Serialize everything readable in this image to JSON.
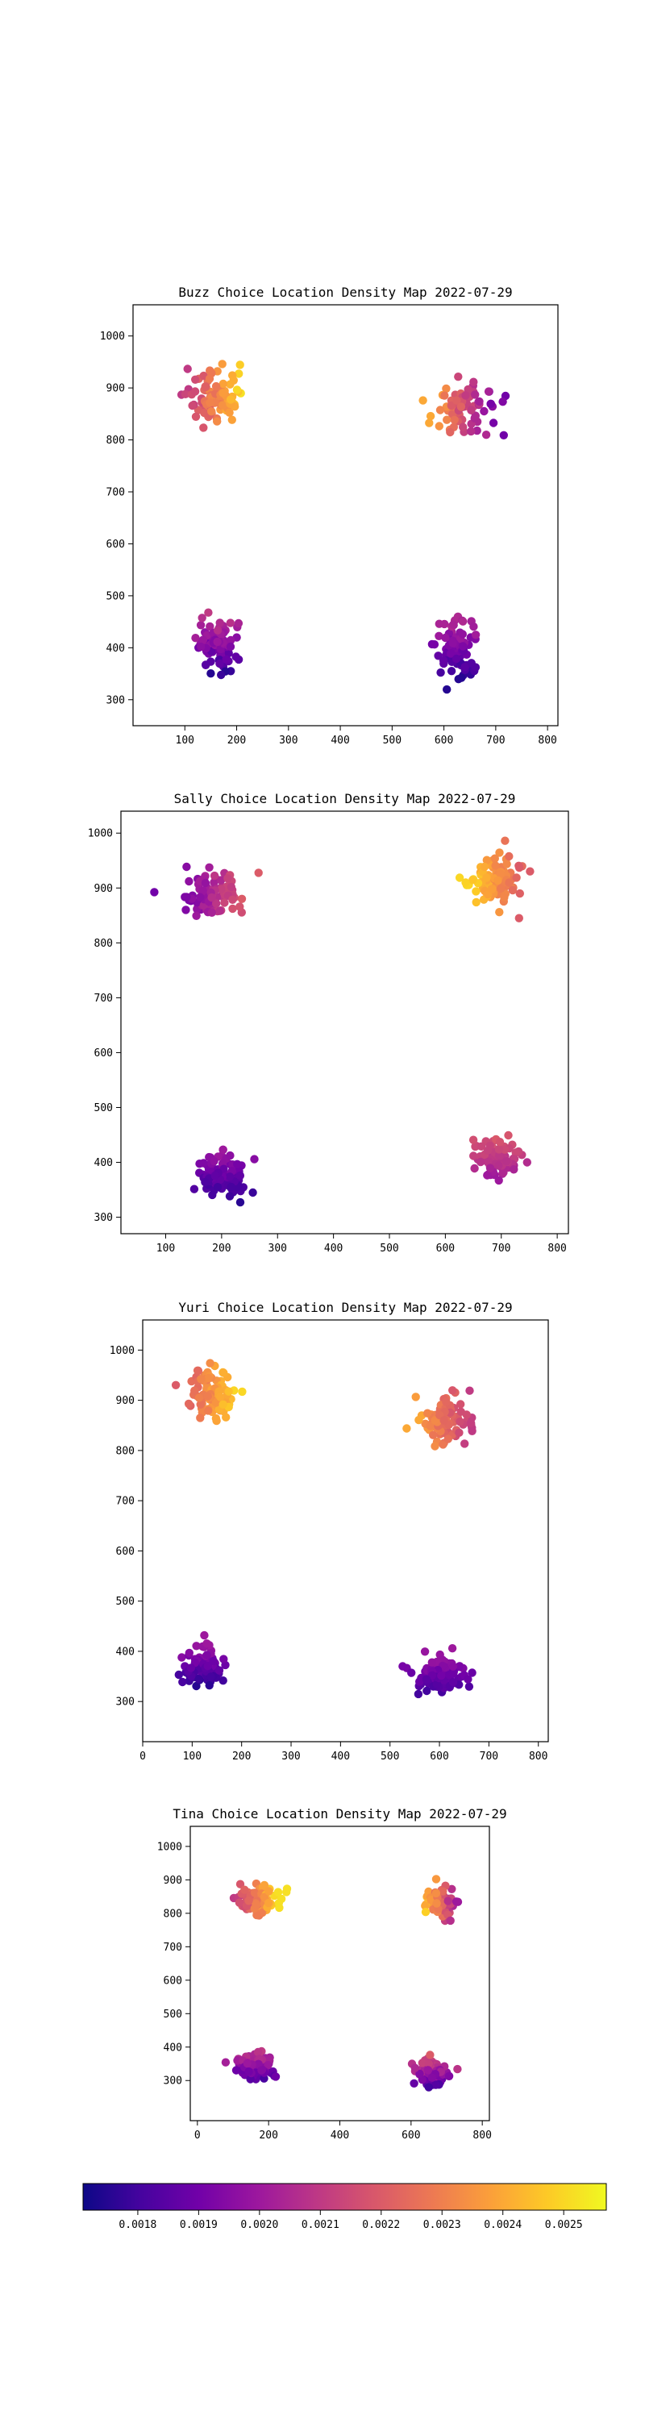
{
  "chart_data": [
    {
      "type": "scatter",
      "title": "Buzz Choice Location Density Map 2022-07-29",
      "xlim": [
        0,
        820
      ],
      "ylim": [
        250,
        1060
      ],
      "xticks": [
        100,
        200,
        300,
        400,
        500,
        600,
        700,
        800
      ],
      "yticks": [
        300,
        400,
        500,
        600,
        700,
        800,
        900,
        1000
      ],
      "clusters": [
        {
          "cx": 160,
          "cy": 885,
          "sx": 48,
          "sy": 45,
          "n": 95,
          "d0": 0.0021,
          "d1": 0.00252,
          "grad": "right"
        },
        {
          "cx": 640,
          "cy": 860,
          "sx": 55,
          "sy": 45,
          "n": 75,
          "d0": 0.0024,
          "d1": 0.0019,
          "grad": "right"
        },
        {
          "cx": 165,
          "cy": 400,
          "sx": 32,
          "sy": 48,
          "n": 85,
          "d0": 0.00175,
          "d1": 0.0021,
          "grad": "up"
        },
        {
          "cx": 625,
          "cy": 395,
          "sx": 30,
          "sy": 45,
          "n": 80,
          "d0": 0.00175,
          "d1": 0.00205,
          "grad": "up"
        }
      ]
    },
    {
      "type": "scatter",
      "title": "Sally Choice Location Density Map 2022-07-29",
      "xlim": [
        20,
        820
      ],
      "ylim": [
        270,
        1040
      ],
      "xticks": [
        100,
        200,
        300,
        400,
        500,
        600,
        700,
        800
      ],
      "yticks": [
        300,
        400,
        500,
        600,
        700,
        800,
        900,
        1000
      ],
      "clusters": [
        {
          "cx": 185,
          "cy": 885,
          "sx": 48,
          "sy": 40,
          "n": 90,
          "d0": 0.0019,
          "d1": 0.0022,
          "grad": "right"
        },
        {
          "cx": 690,
          "cy": 915,
          "sx": 42,
          "sy": 40,
          "n": 95,
          "d0": 0.0025,
          "d1": 0.0022,
          "grad": "right"
        },
        {
          "cx": 200,
          "cy": 375,
          "sx": 40,
          "sy": 38,
          "n": 90,
          "d0": 0.00175,
          "d1": 0.002,
          "grad": "up"
        },
        {
          "cx": 690,
          "cy": 410,
          "sx": 40,
          "sy": 35,
          "n": 80,
          "d0": 0.002,
          "d1": 0.0022,
          "grad": "up"
        }
      ]
    },
    {
      "type": "scatter",
      "title": "Yuri Choice Location Density Map 2022-07-29",
      "xlim": [
        0,
        820
      ],
      "ylim": [
        220,
        1060
      ],
      "xticks": [
        0,
        100,
        200,
        300,
        400,
        500,
        600,
        700,
        800
      ],
      "yticks": [
        300,
        400,
        500,
        600,
        700,
        800,
        900,
        1000
      ],
      "clusters": [
        {
          "cx": 140,
          "cy": 910,
          "sx": 45,
          "sy": 45,
          "n": 100,
          "d0": 0.0022,
          "d1": 0.0025,
          "grad": "right"
        },
        {
          "cx": 610,
          "cy": 860,
          "sx": 45,
          "sy": 40,
          "n": 95,
          "d0": 0.0024,
          "d1": 0.0021,
          "grad": "right"
        },
        {
          "cx": 120,
          "cy": 370,
          "sx": 38,
          "sy": 35,
          "n": 90,
          "d0": 0.00175,
          "d1": 0.002,
          "grad": "up"
        },
        {
          "cx": 600,
          "cy": 355,
          "sx": 50,
          "sy": 35,
          "n": 90,
          "d0": 0.0018,
          "d1": 0.002,
          "grad": "up"
        }
      ]
    },
    {
      "type": "scatter",
      "title": "Tina Choice Location Density Map 2022-07-29",
      "xlim": [
        -20,
        820
      ],
      "ylim": [
        180,
        1060
      ],
      "xticks": [
        0,
        200,
        400,
        600,
        800
      ],
      "yticks": [
        300,
        400,
        500,
        600,
        700,
        800,
        900,
        1000
      ],
      "clusters": [
        {
          "cx": 170,
          "cy": 840,
          "sx": 55,
          "sy": 40,
          "n": 110,
          "d0": 0.0021,
          "d1": 0.00252,
          "grad": "right"
        },
        {
          "cx": 680,
          "cy": 830,
          "sx": 40,
          "sy": 40,
          "n": 90,
          "d0": 0.0025,
          "d1": 0.002,
          "grad": "right"
        },
        {
          "cx": 160,
          "cy": 340,
          "sx": 45,
          "sy": 40,
          "n": 95,
          "d0": 0.0018,
          "d1": 0.0021,
          "grad": "up"
        },
        {
          "cx": 660,
          "cy": 325,
          "sx": 40,
          "sy": 40,
          "n": 95,
          "d0": 0.0018,
          "d1": 0.0022,
          "grad": "up"
        }
      ]
    }
  ],
  "colorbar": {
    "colormap": "plasma",
    "range": [
      0.00171,
      0.00257
    ],
    "ticks": [
      "0.0018",
      "0.0019",
      "0.0020",
      "0.0021",
      "0.0022",
      "0.0023",
      "0.0024",
      "0.0025"
    ],
    "tick_values": [
      0.0018,
      0.0019,
      0.002,
      0.0021,
      0.0022,
      0.0023,
      0.0024,
      0.0025
    ]
  },
  "colors": {
    "plasma": [
      "#0d0887",
      "#46039f",
      "#7201a8",
      "#9c179e",
      "#bd3786",
      "#d8576b",
      "#ed7953",
      "#fb9f3a",
      "#fdca26",
      "#f0f921"
    ]
  }
}
